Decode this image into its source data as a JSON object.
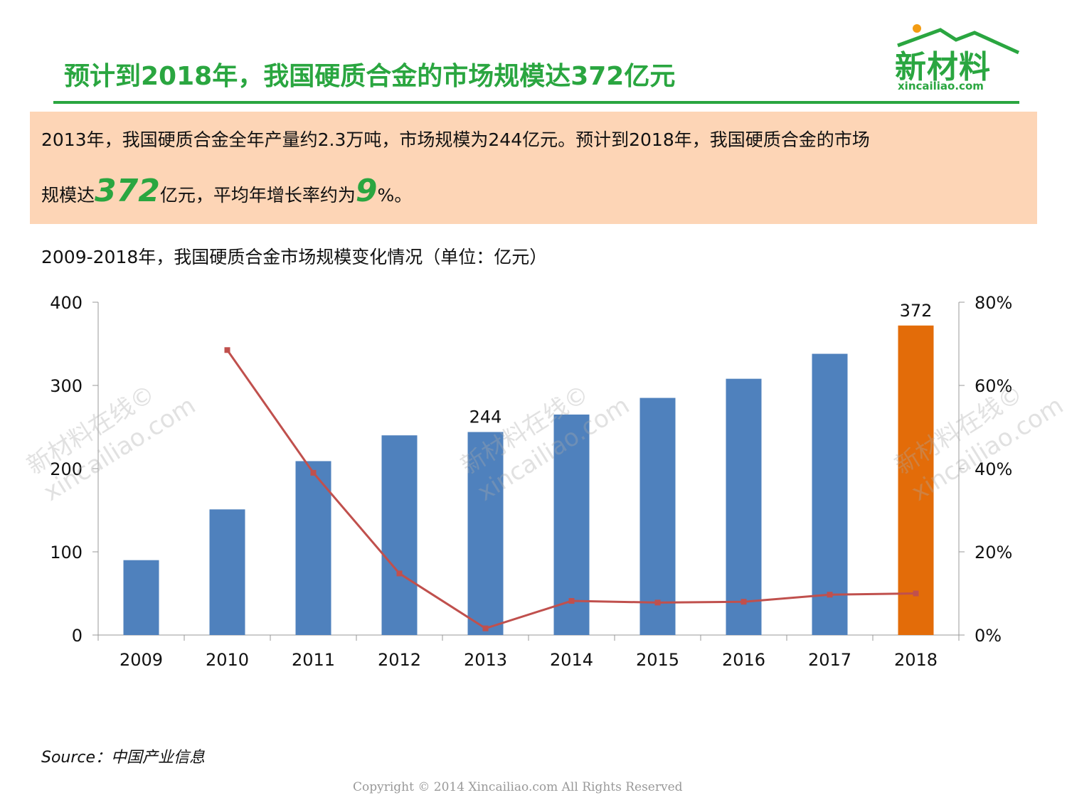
{
  "header": {
    "title": "预计到2018年，我国硬质合金的市场规模达372亿元",
    "logo_text": "新材料",
    "logo_sub": "xincailiao.com"
  },
  "summary": {
    "line1": "2013年，我国硬质合金全年产量约2.3万吨，市场规模为244亿元。预计到2018年，我国硬质合金的市场",
    "line2_prefix": "规模达",
    "line2_big1": "372",
    "line2_mid": "亿元，平均年增长率约为",
    "line2_big2": "9",
    "line2_suffix": "%。"
  },
  "chart_subtitle": "2009-2018年，我国硬质合金市场规模变化情况（单位：亿元）",
  "watermark": {
    "line1": "新材料在线©",
    "line2": "xincailiao.com"
  },
  "source": "Source：中国产业信息",
  "copyright": "Copyright © 2014   Xincailiao.com   All Rights Reserved",
  "colors": {
    "green": "#2aa640",
    "bar": "#4f81bd",
    "bar_highlight": "#e36c09",
    "line": "#c0504d"
  },
  "chart_data": {
    "type": "bar",
    "categories": [
      "2009",
      "2010",
      "2011",
      "2012",
      "2013",
      "2014",
      "2015",
      "2016",
      "2017",
      "2018"
    ],
    "series": [
      {
        "values": [
          90,
          151,
          209,
          240,
          244,
          265,
          285,
          308,
          338,
          372
        ],
        "axis": "left",
        "type": "bar"
      },
      {
        "values": [
          null,
          68.5,
          39,
          14.8,
          1.6,
          8.2,
          7.8,
          8.0,
          9.7,
          10.0
        ],
        "axis": "right",
        "type": "line"
      }
    ],
    "data_labels": [
      {
        "category": "2013",
        "value": "244"
      },
      {
        "category": "2018",
        "value": "372"
      }
    ],
    "highlight_category": "2018",
    "ylim_left": [
      0,
      400
    ],
    "yticks_left": [
      "0",
      "100",
      "200",
      "300",
      "400"
    ],
    "ylim_right": [
      0,
      80
    ],
    "yticks_right": [
      "0%",
      "20%",
      "40%",
      "60%",
      "80%"
    ],
    "grid": false,
    "legend": "none"
  }
}
